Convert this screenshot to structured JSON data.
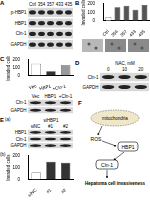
{
  "panels": {
    "A": {
      "letter": "A",
      "lanes": [
        "Ctrl",
        "354",
        "357",
        "433",
        "435"
      ],
      "rows": [
        "p-HBP1",
        "HBP1",
        "Cln-1",
        "GAPDH"
      ]
    },
    "B": {
      "letter": "B"
    },
    "C": {
      "letter": "C",
      "lanes": [
        "Vec",
        "HBP1",
        "+Cln-1"
      ],
      "rows": [
        "Cln-1",
        "GAPDH"
      ]
    },
    "D": {
      "letter": "D",
      "header": "NAC, mM",
      "lanes": [
        "0",
        "10",
        "20"
      ],
      "rows": [
        "Cln-1",
        "GAPDH"
      ]
    },
    "E": {
      "letter": "E",
      "sub_a": "(a)",
      "sub_b": "(b)",
      "header": "siHBP1",
      "lanes": [
        "siNC",
        "#1",
        "#2"
      ],
      "rows": [
        "HBP1",
        "Cln-1",
        "GAPDH"
      ]
    },
    "F": {
      "letter": "F",
      "mito": "mitochondria",
      "ros": "ROS",
      "hbp1": "HBP1",
      "cln1": "Cln-1",
      "outcome": "Hepatoma cell invasiveness"
    }
  },
  "chart_data": [
    {
      "type": "bar",
      "y_label": "Invaded cells",
      "categories": [
        "Ctrl",
        "354",
        "357",
        "433",
        "435"
      ],
      "values": [
        45,
        160,
        175,
        130,
        185
      ],
      "colors": [
        "#ffffff",
        "#555555",
        "#555555",
        "#555555",
        "#555555"
      ],
      "ylim": [
        0,
        200
      ],
      "yticks": [
        0,
        100,
        200
      ],
      "grid": false
    },
    {
      "type": "bar",
      "y_label": "Invaded cells",
      "categories": [
        "Vec",
        "HBP1",
        "+Cln-1"
      ],
      "values": [
        150,
        55,
        130
      ],
      "colors": [
        "#ffffff",
        "#333333",
        "#999999"
      ],
      "ylim": [
        0,
        200
      ],
      "yticks": [
        0,
        100,
        200
      ],
      "grid": false
    },
    {
      "type": "bar",
      "y_label": "Invaded cells",
      "categories": [
        "siNC",
        "#1",
        "#2"
      ],
      "values": [
        60,
        150,
        140
      ],
      "colors": [
        "#ffffff",
        "#333333",
        "#333333"
      ],
      "ylim": [
        0,
        200
      ],
      "yticks": [
        0,
        100,
        200
      ],
      "grid": false
    }
  ]
}
